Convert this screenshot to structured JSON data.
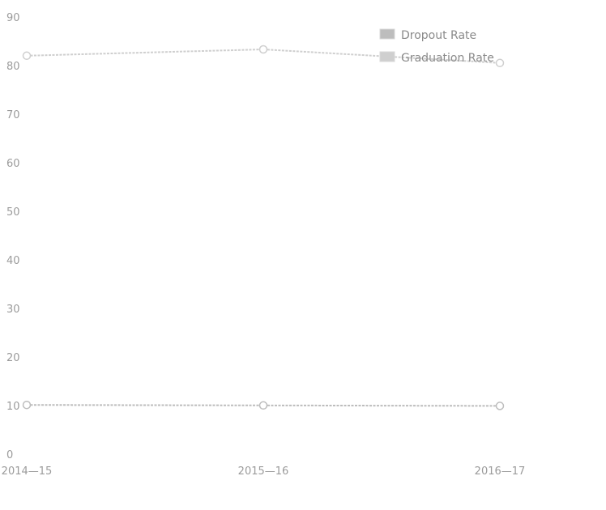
{
  "chart_data": {
    "type": "line",
    "categories": [
      "2014—15",
      "2015—16",
      "2016—17"
    ],
    "series": [
      {
        "name": "Dropout Rate",
        "values": [
          10.3,
          10.2,
          10.1
        ],
        "color": "#bdbdbd",
        "marker": "circle"
      },
      {
        "name": "Graduation Rate",
        "values": [
          82.2,
          83.5,
          80.7
        ],
        "color": "#cfcfcf",
        "marker": "circle"
      }
    ],
    "title": "",
    "xlabel": "",
    "ylabel": "",
    "ylim": [
      0,
      90
    ],
    "yticks": [
      0,
      10,
      20,
      30,
      40,
      50,
      60,
      70,
      80,
      90
    ],
    "grid": false,
    "legend_position": "top-right"
  }
}
